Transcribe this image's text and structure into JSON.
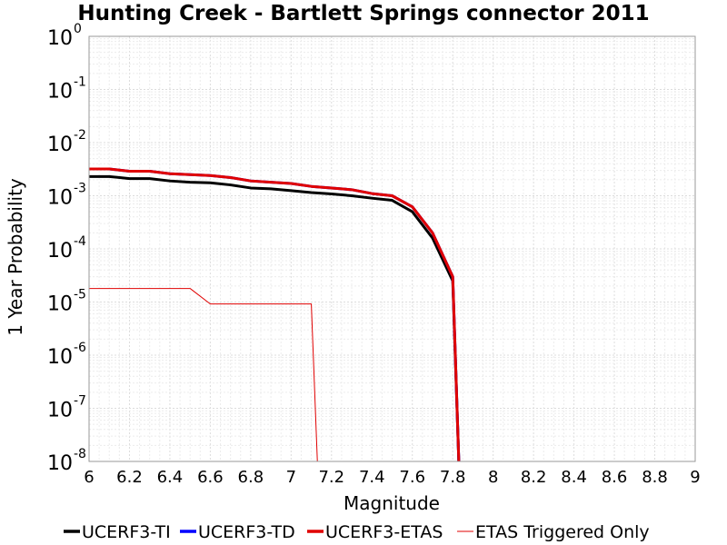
{
  "chart_data": {
    "type": "line",
    "title": "Hunting Creek - Bartlett Springs connector 2011",
    "xlabel": "Magnitude",
    "ylabel": "1 Year Probability",
    "xlim": [
      6,
      9
    ],
    "ylim": [
      1e-08,
      1
    ],
    "y_scale": "log",
    "grid": true,
    "legend_position": "bottom",
    "x_ticks": [
      "6",
      "6.2",
      "6.4",
      "6.6",
      "6.8",
      "7",
      "7.2",
      "7.4",
      "7.6",
      "7.8",
      "8",
      "8.2",
      "8.4",
      "8.6",
      "8.8",
      "9"
    ],
    "y_ticks": [
      {
        "base": "10",
        "exp": "0"
      },
      {
        "base": "10",
        "exp": "-1"
      },
      {
        "base": "10",
        "exp": "-2"
      },
      {
        "base": "10",
        "exp": "-3"
      },
      {
        "base": "10",
        "exp": "-4"
      },
      {
        "base": "10",
        "exp": "-5"
      },
      {
        "base": "10",
        "exp": "-6"
      },
      {
        "base": "10",
        "exp": "-7"
      },
      {
        "base": "10",
        "exp": "-8"
      }
    ],
    "series": [
      {
        "name": "UCERF3-TI",
        "color": "#000000",
        "width": 3,
        "points": [
          [
            6.0,
            0.0023
          ],
          [
            6.1,
            0.0023
          ],
          [
            6.2,
            0.0021
          ],
          [
            6.3,
            0.0021
          ],
          [
            6.4,
            0.0019
          ],
          [
            6.5,
            0.0018
          ],
          [
            6.6,
            0.00175
          ],
          [
            6.7,
            0.0016
          ],
          [
            6.8,
            0.0014
          ],
          [
            6.9,
            0.00135
          ],
          [
            7.0,
            0.00125
          ],
          [
            7.1,
            0.00115
          ],
          [
            7.2,
            0.00108
          ],
          [
            7.3,
            0.001
          ],
          [
            7.4,
            0.0009
          ],
          [
            7.5,
            0.00082
          ],
          [
            7.6,
            0.0005
          ],
          [
            7.7,
            0.00016
          ],
          [
            7.8,
            2.5e-05
          ],
          [
            7.83,
            1e-08
          ]
        ]
      },
      {
        "name": "UCERF3-TD",
        "color": "#0000ff",
        "width": 3,
        "points": [
          [
            6.0,
            0.0032
          ],
          [
            6.1,
            0.0032
          ],
          [
            6.2,
            0.0029
          ],
          [
            6.3,
            0.0029
          ],
          [
            6.4,
            0.0026
          ],
          [
            6.5,
            0.0025
          ],
          [
            6.6,
            0.0024
          ],
          [
            6.7,
            0.0022
          ],
          [
            6.8,
            0.0019
          ],
          [
            6.9,
            0.0018
          ],
          [
            7.0,
            0.0017
          ],
          [
            7.1,
            0.0015
          ],
          [
            7.2,
            0.0014
          ],
          [
            7.3,
            0.0013
          ],
          [
            7.4,
            0.0011
          ],
          [
            7.5,
            0.001
          ],
          [
            7.6,
            0.00062
          ],
          [
            7.7,
            0.0002
          ],
          [
            7.8,
            3e-05
          ],
          [
            7.83,
            1e-08
          ]
        ]
      },
      {
        "name": "UCERF3-ETAS",
        "color": "#e00000",
        "width": 3,
        "points": [
          [
            6.0,
            0.0032
          ],
          [
            6.1,
            0.0032
          ],
          [
            6.2,
            0.0029
          ],
          [
            6.3,
            0.0029
          ],
          [
            6.4,
            0.0026
          ],
          [
            6.5,
            0.0025
          ],
          [
            6.6,
            0.0024
          ],
          [
            6.7,
            0.0022
          ],
          [
            6.8,
            0.0019
          ],
          [
            6.9,
            0.0018
          ],
          [
            7.0,
            0.0017
          ],
          [
            7.1,
            0.0015
          ],
          [
            7.2,
            0.0014
          ],
          [
            7.3,
            0.0013
          ],
          [
            7.4,
            0.0011
          ],
          [
            7.5,
            0.001
          ],
          [
            7.6,
            0.00062
          ],
          [
            7.7,
            0.0002
          ],
          [
            7.8,
            3e-05
          ],
          [
            7.83,
            1e-08
          ]
        ]
      },
      {
        "name": "ETAS Triggered Only",
        "color": "#e00000",
        "width": 1,
        "points": [
          [
            6.0,
            1.8e-05
          ],
          [
            6.5,
            1.8e-05
          ],
          [
            6.6,
            9.2e-06
          ],
          [
            7.1,
            9.2e-06
          ],
          [
            7.13,
            1e-08
          ]
        ]
      }
    ]
  }
}
